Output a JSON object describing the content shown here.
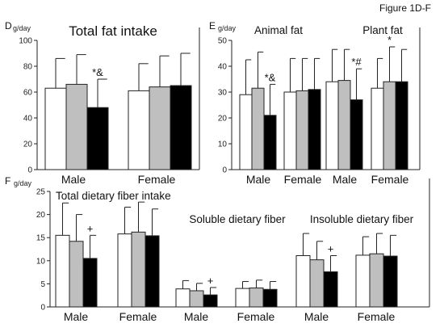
{
  "figure_label": "Figure 1D-F",
  "chart_data": [
    {
      "panel": "D",
      "type": "bar",
      "title": "Total fat intake",
      "ylabel": "g/day",
      "ylim": [
        0,
        100
      ],
      "yticks": [
        0,
        20,
        40,
        60,
        80,
        100
      ],
      "grid": false,
      "groups": [
        {
          "label": "Male",
          "values": [
            63,
            66,
            48
          ],
          "errors": [
            23,
            23,
            22
          ],
          "marks": [
            "",
            "",
            "*&"
          ]
        },
        {
          "label": "Female",
          "values": [
            61,
            64,
            65
          ],
          "errors": [
            21,
            24,
            25
          ],
          "marks": [
            "",
            "",
            ""
          ]
        }
      ],
      "bar_colors": [
        "#ffffff",
        "#bfbfbf",
        "#000000"
      ]
    },
    {
      "panel": "E",
      "type": "bar",
      "ylabel": "g/day",
      "ylim": [
        0,
        50
      ],
      "yticks": [
        0,
        10,
        20,
        30,
        40,
        50
      ],
      "grid": false,
      "subtitles": [
        "Animal fat",
        "Plant fat"
      ],
      "groups": [
        {
          "label": "Male",
          "values": [
            29,
            31.5,
            21
          ],
          "errors": [
            13.5,
            14,
            12
          ],
          "marks": [
            "",
            "",
            "*&"
          ]
        },
        {
          "label": "Female",
          "values": [
            30,
            30.5,
            31
          ],
          "errors": [
            13,
            12.5,
            12
          ],
          "marks": [
            "",
            "",
            ""
          ]
        },
        {
          "label": "Male",
          "values": [
            34,
            34.5,
            27
          ],
          "errors": [
            12.5,
            12,
            12
          ],
          "marks": [
            "",
            "",
            "*#"
          ]
        },
        {
          "label": "Female",
          "values": [
            31.5,
            34,
            34
          ],
          "errors": [
            11.5,
            13.5,
            12.5
          ],
          "marks": [
            "",
            "*",
            ""
          ]
        }
      ],
      "bar_colors": [
        "#ffffff",
        "#bfbfbf",
        "#000000"
      ]
    },
    {
      "panel": "F",
      "type": "bar",
      "ylabel": "g/day",
      "ylim": [
        0,
        25
      ],
      "yticks": [
        0,
        5,
        10,
        15,
        20,
        25
      ],
      "grid": false,
      "subtitles": [
        "Total dietary fiber intake",
        "Soluble dietary fiber",
        "Insoluble dietary fiber"
      ],
      "groups": [
        {
          "label": "Male",
          "values": [
            15.5,
            14.2,
            10.5
          ],
          "errors": [
            7,
            5.8,
            5
          ],
          "marks": [
            "",
            "",
            "+"
          ]
        },
        {
          "label": "Female",
          "values": [
            15.8,
            16.2,
            15.4
          ],
          "errors": [
            5.8,
            6.5,
            5.8
          ],
          "marks": [
            "",
            "",
            ""
          ]
        },
        {
          "label": "Male",
          "values": [
            3.9,
            3.5,
            2.6
          ],
          "errors": [
            1.8,
            1.6,
            1.6
          ],
          "marks": [
            "",
            "",
            "+"
          ]
        },
        {
          "label": "Female",
          "values": [
            4,
            4.1,
            3.8
          ],
          "errors": [
            1.5,
            1.7,
            1.7
          ],
          "marks": [
            "",
            "",
            ""
          ]
        },
        {
          "label": "Male",
          "values": [
            11.1,
            10.2,
            7.6
          ],
          "errors": [
            4.8,
            4,
            3.5
          ],
          "marks": [
            "",
            "",
            "+"
          ]
        },
        {
          "label": "Female",
          "values": [
            11.2,
            11.5,
            11
          ],
          "errors": [
            4,
            4.4,
            4.5
          ],
          "marks": [
            "",
            "",
            ""
          ]
        }
      ],
      "bar_colors": [
        "#ffffff",
        "#bfbfbf",
        "#000000"
      ]
    }
  ]
}
